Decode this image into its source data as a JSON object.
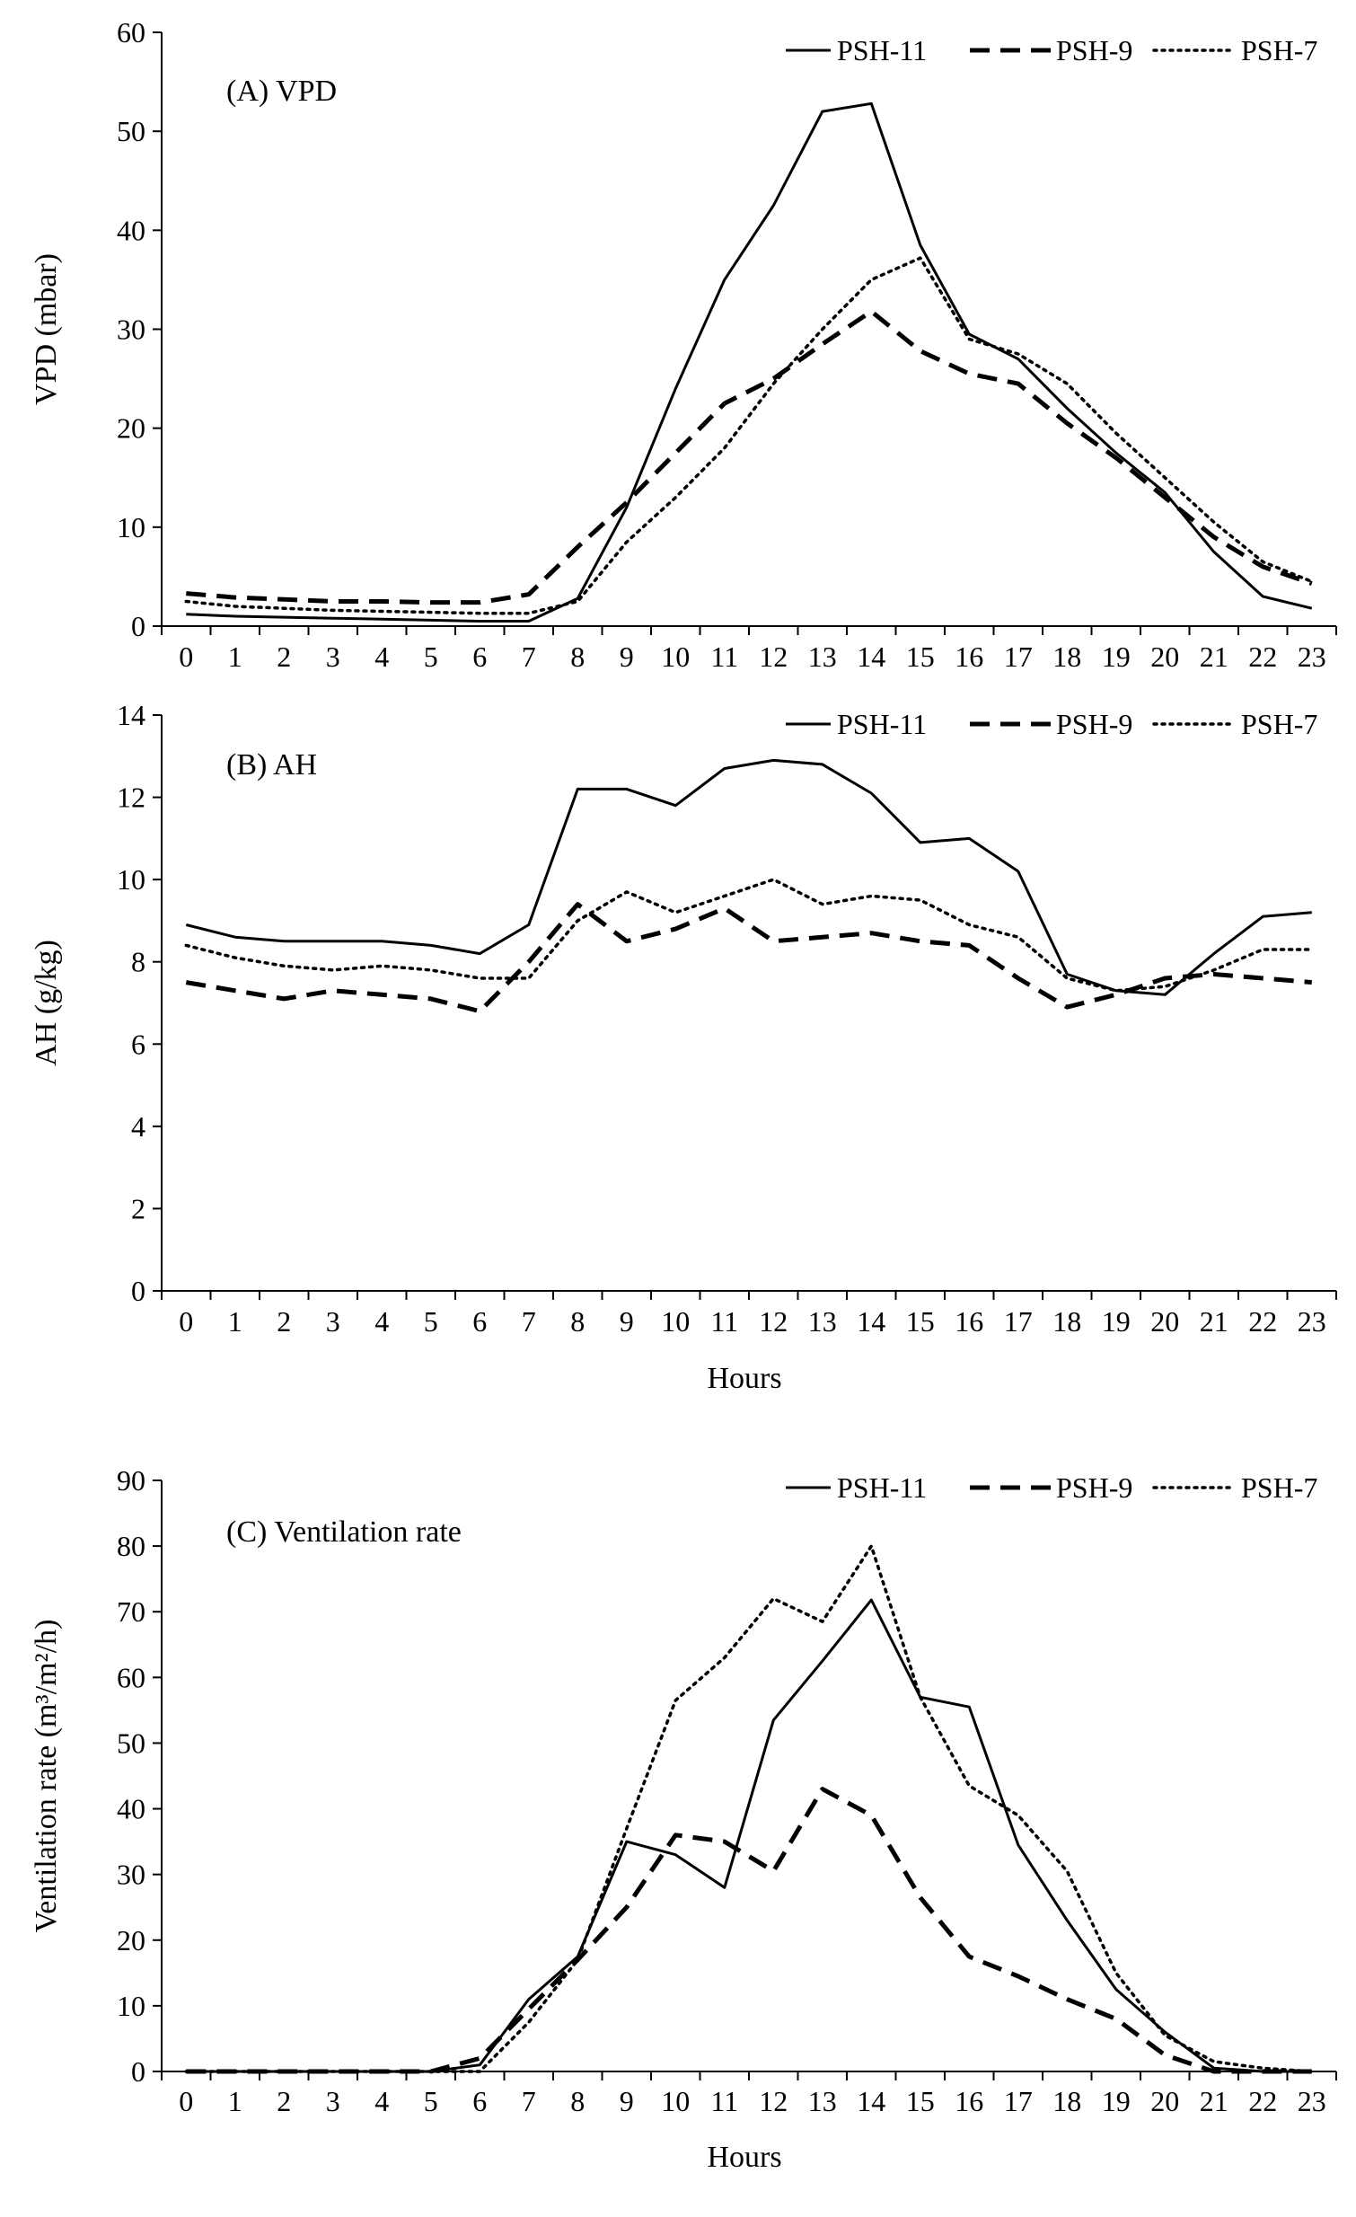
{
  "chart_data": [
    {
      "type": "line",
      "panel_label": "(A) VPD",
      "ylabel": "VPD (mbar)",
      "xlabel": "",
      "ylim": [
        0,
        60
      ],
      "yticks": [
        0,
        10,
        20,
        30,
        40,
        50,
        60
      ],
      "categories": [
        "0",
        "1",
        "2",
        "3",
        "4",
        "5",
        "6",
        "7",
        "8",
        "9",
        "10",
        "11",
        "12",
        "13",
        "14",
        "15",
        "16",
        "17",
        "18",
        "19",
        "20",
        "21",
        "22",
        "23"
      ],
      "legend_position": "top-right",
      "series": [
        {
          "name": "PSH-11",
          "style": "solid",
          "values": [
            1.2,
            1.0,
            0.9,
            0.8,
            0.7,
            0.6,
            0.5,
            0.5,
            2.8,
            12.0,
            24.0,
            35.0,
            42.5,
            52.0,
            52.8,
            38.5,
            29.5,
            27.0,
            22.0,
            17.5,
            13.5,
            7.5,
            3.0,
            1.8
          ]
        },
        {
          "name": "PSH-9",
          "style": "dashed",
          "values": [
            3.3,
            2.9,
            2.7,
            2.5,
            2.5,
            2.4,
            2.4,
            3.2,
            8.0,
            12.5,
            17.5,
            22.5,
            25.0,
            28.5,
            31.8,
            27.8,
            25.5,
            24.5,
            20.5,
            17.0,
            13.0,
            9.0,
            6.0,
            4.3
          ]
        },
        {
          "name": "PSH-7",
          "style": "dotted",
          "values": [
            2.5,
            2.0,
            1.8,
            1.6,
            1.5,
            1.4,
            1.3,
            1.3,
            2.5,
            8.5,
            13.0,
            18.0,
            24.5,
            30.0,
            35.0,
            37.2,
            29.0,
            27.5,
            24.5,
            19.5,
            15.0,
            10.5,
            6.5,
            4.5
          ]
        }
      ]
    },
    {
      "type": "line",
      "panel_label": "(B) AH",
      "ylabel": "AH (g/kg)",
      "xlabel": "Hours",
      "ylim": [
        0,
        14
      ],
      "yticks": [
        0,
        2,
        4,
        6,
        8,
        10,
        12,
        14
      ],
      "categories": [
        "0",
        "1",
        "2",
        "3",
        "4",
        "5",
        "6",
        "7",
        "8",
        "9",
        "10",
        "11",
        "12",
        "13",
        "14",
        "15",
        "16",
        "17",
        "18",
        "19",
        "20",
        "21",
        "22",
        "23"
      ],
      "legend_position": "top-right",
      "series": [
        {
          "name": "PSH-11",
          "style": "solid",
          "values": [
            8.9,
            8.6,
            8.5,
            8.5,
            8.5,
            8.4,
            8.2,
            8.9,
            12.2,
            12.2,
            11.8,
            12.7,
            12.9,
            12.8,
            12.1,
            10.9,
            11.0,
            10.2,
            7.7,
            7.3,
            7.2,
            8.2,
            9.1,
            9.2
          ]
        },
        {
          "name": "PSH-9",
          "style": "dashed",
          "values": [
            7.5,
            7.3,
            7.1,
            7.3,
            7.2,
            7.1,
            6.8,
            8.0,
            9.4,
            8.5,
            8.8,
            9.3,
            8.5,
            8.6,
            8.7,
            8.5,
            8.4,
            7.6,
            6.9,
            7.2,
            7.6,
            7.7,
            7.6,
            7.5
          ]
        },
        {
          "name": "PSH-7",
          "style": "dotted",
          "values": [
            8.4,
            8.1,
            7.9,
            7.8,
            7.9,
            7.8,
            7.6,
            7.6,
            9.0,
            9.7,
            9.2,
            9.6,
            10.0,
            9.4,
            9.6,
            9.5,
            8.9,
            8.6,
            7.6,
            7.3,
            7.4,
            7.8,
            8.3,
            8.3
          ]
        }
      ]
    },
    {
      "type": "line",
      "panel_label": "(C) Ventilation rate",
      "ylabel": "Ventilation rate (m³/m²/h)",
      "xlabel": "Hours",
      "ylim": [
        0,
        90
      ],
      "yticks": [
        0,
        10,
        20,
        30,
        40,
        50,
        60,
        70,
        80,
        90
      ],
      "categories": [
        "0",
        "1",
        "2",
        "3",
        "4",
        "5",
        "6",
        "7",
        "8",
        "9",
        "10",
        "11",
        "12",
        "13",
        "14",
        "15",
        "16",
        "17",
        "18",
        "19",
        "20",
        "21",
        "22",
        "23"
      ],
      "legend_position": "top-right",
      "series": [
        {
          "name": "PSH-11",
          "style": "solid",
          "values": [
            0,
            0,
            0,
            0,
            0,
            0,
            1.0,
            11.0,
            17.5,
            35.0,
            33.0,
            28.0,
            53.5,
            62.5,
            71.8,
            57.0,
            55.5,
            34.5,
            23.0,
            12.5,
            6.0,
            0.5,
            0,
            0
          ]
        },
        {
          "name": "PSH-9",
          "style": "dashed",
          "values": [
            0,
            0,
            0,
            0,
            0,
            0,
            2.0,
            9.5,
            17.0,
            25.0,
            36.0,
            35.0,
            30.5,
            43.0,
            39.0,
            26.5,
            17.5,
            14.5,
            11.0,
            8.0,
            2.5,
            0,
            0,
            0
          ]
        },
        {
          "name": "PSH-7",
          "style": "dotted",
          "values": [
            0,
            0,
            0,
            0,
            0,
            0,
            0,
            7.5,
            17.0,
            37.0,
            56.5,
            63.0,
            72.0,
            68.5,
            80.0,
            57.0,
            43.5,
            39.0,
            30.5,
            15.0,
            5.5,
            1.5,
            0.5,
            0
          ]
        }
      ]
    }
  ]
}
